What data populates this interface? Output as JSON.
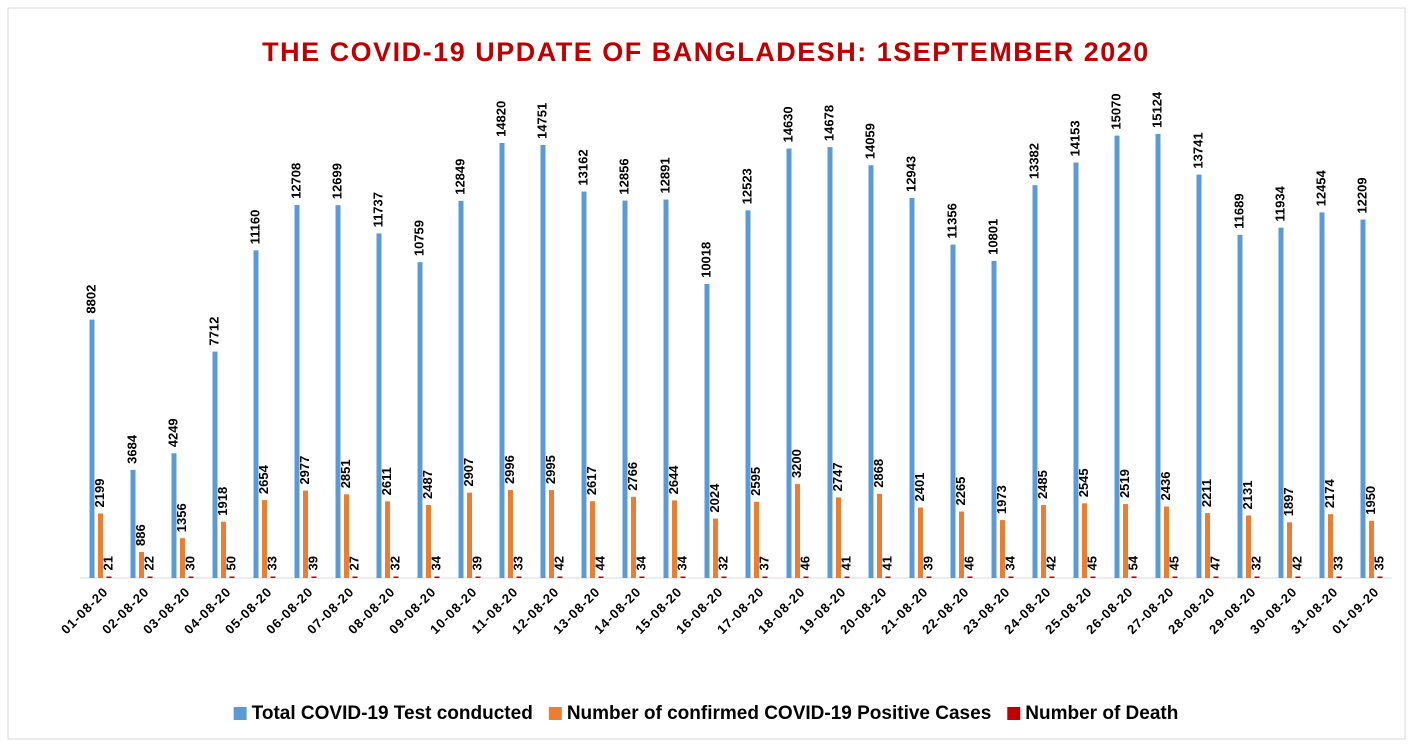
{
  "chart_data": {
    "type": "bar",
    "title": "THE COVID-19 UPDATE OF BANGLADESH: 1SEPTEMBER 2020",
    "categories": [
      "01-08-20",
      "02-08-20",
      "03-08-20",
      "04-08-20",
      "05-08-20",
      "06-08-20",
      "07-08-20",
      "08-08-20",
      "09-08-20",
      "10-08-20",
      "11-08-20",
      "12-08-20",
      "13-08-20",
      "14-08-20",
      "15-08-20",
      "16-08-20",
      "17-08-20",
      "18-08-20",
      "19-08-20",
      "20-08-20",
      "21-08-20",
      "22-08-20",
      "23-08-20",
      "24-08-20",
      "25-08-20",
      "26-08-20",
      "27-08-20",
      "28-08-20",
      "29-08-20",
      "30-08-20",
      "31-08-20",
      "01-09-20"
    ],
    "series": [
      {
        "name": "Total COVID-19 Test conducted",
        "color": "#5b9bd5",
        "values": [
          8802,
          3684,
          4249,
          7712,
          11160,
          12708,
          12699,
          11737,
          10759,
          12849,
          14820,
          14751,
          13162,
          12856,
          12891,
          10018,
          12523,
          14630,
          14678,
          14059,
          12943,
          11356,
          10801,
          13382,
          14153,
          15070,
          15124,
          13741,
          11689,
          11934,
          12454,
          12209
        ]
      },
      {
        "name": "Number of confirmed COVID-19 Positive Cases",
        "color": "#ed7d31",
        "values": [
          2199,
          886,
          1356,
          1918,
          2654,
          2977,
          2851,
          2611,
          2487,
          2907,
          2996,
          2995,
          2617,
          2766,
          2644,
          2024,
          2595,
          3200,
          2747,
          2868,
          2401,
          2265,
          1973,
          2485,
          2545,
          2519,
          2436,
          2211,
          2131,
          1897,
          2174,
          1950
        ]
      },
      {
        "name": "Number of Death",
        "color": "#c00000",
        "values": [
          21,
          22,
          30,
          50,
          33,
          39,
          27,
          32,
          34,
          39,
          33,
          42,
          44,
          34,
          34,
          32,
          37,
          46,
          41,
          41,
          39,
          46,
          34,
          42,
          45,
          54,
          45,
          47,
          32,
          42,
          33,
          35
        ]
      }
    ],
    "legend": "bottom"
  }
}
